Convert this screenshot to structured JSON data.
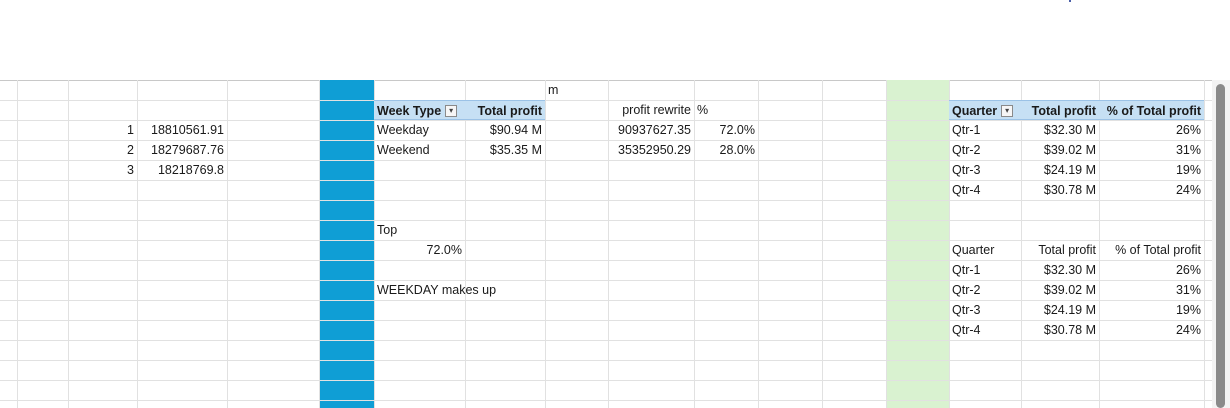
{
  "sheet": {
    "colA": {
      "row1": "1",
      "row2": "2",
      "row3": "3"
    },
    "colB": {
      "row1": "18810561.91",
      "row2": "18279687.76",
      "row3": "18218769.8"
    },
    "m_label": "m",
    "week_pivot": {
      "header_type": "Week Type",
      "header_profit": "Total profit",
      "rows": [
        {
          "type": "Weekday",
          "profit": "$90.94 M"
        },
        {
          "type": "Weekend",
          "profit": "$35.35 M"
        }
      ]
    },
    "rewrite": {
      "header_profit": "profit rewrite",
      "header_pct": "%",
      "rows": [
        {
          "value": "90937627.35",
          "pct": "72.0%"
        },
        {
          "value": "35352950.29",
          "pct": "28.0%"
        }
      ]
    },
    "top_label": "Top",
    "top_value": "72.0%",
    "weekday_text": "WEEKDAY makes up",
    "quarter_pivot": {
      "header_quarter": "Quarter",
      "header_profit": "Total profit",
      "header_pct": "% of Total profit",
      "rows": [
        {
          "q": "Qtr-1",
          "profit": "$32.30 M",
          "pct": "26%"
        },
        {
          "q": "Qtr-2",
          "profit": "$39.02 M",
          "pct": "31%"
        },
        {
          "q": "Qtr-3",
          "profit": "$24.19 M",
          "pct": "19%"
        },
        {
          "q": "Qtr-4",
          "profit": "$30.78 M",
          "pct": "24%"
        }
      ]
    },
    "quarter_table2": {
      "header_quarter": "Quarter",
      "header_profit": "Total profit",
      "header_pct": "% of Total profit",
      "rows": [
        {
          "q": "Qtr-1",
          "profit": "$32.30 M",
          "pct": "26%"
        },
        {
          "q": "Qtr-2",
          "profit": "$39.02 M",
          "pct": "31%"
        },
        {
          "q": "Qtr-3",
          "profit": "$24.19 M",
          "pct": "19%"
        },
        {
          "q": "Qtr-4",
          "profit": "$30.78 M",
          "pct": "24%"
        }
      ]
    }
  },
  "colors": {
    "blue_column": "#0f9ed5",
    "green_column": "#d9f2d0",
    "pivot_header": "#c6e0f4"
  },
  "icons": {
    "filter_dropdown": "chevron-down-icon"
  }
}
